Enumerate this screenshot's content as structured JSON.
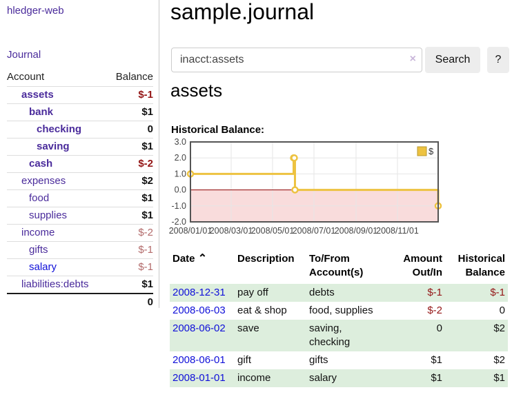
{
  "colors": {
    "purple": "#4a2b9b",
    "blue": "#0f0fd9",
    "darkred": "#941616",
    "rose": "#b36b6b",
    "green_row": "#ddeedd",
    "btn_gray": "#ededed",
    "chart_line": "#edc240",
    "chart_negative_fill": "#f9dcdc",
    "chart_zero_line": "#8b0000",
    "chart_border": "#545454"
  },
  "sidebar": {
    "app_title": "hledger-web",
    "journal_label": "Journal",
    "accounts_table": {
      "headers": {
        "account": "Account",
        "balance": "Balance"
      },
      "rows": [
        {
          "label": "assets",
          "balance": "$-1",
          "indent": 1,
          "bold": true,
          "label_color": "purple",
          "balance_color": "darkred"
        },
        {
          "label": "bank",
          "balance": "$1",
          "indent": 2,
          "bold": true,
          "label_color": "purple",
          "balance_color": "dark"
        },
        {
          "label": "checking",
          "balance": "0",
          "indent": 3,
          "bold": true,
          "label_color": "purple",
          "balance_color": "dark"
        },
        {
          "label": "saving",
          "balance": "$1",
          "indent": 3,
          "bold": true,
          "label_color": "purple",
          "balance_color": "dark"
        },
        {
          "label": "cash",
          "balance": "$-2",
          "indent": 2,
          "bold": true,
          "label_color": "purple",
          "balance_color": "darkred"
        },
        {
          "label": "expenses",
          "balance": "$2",
          "indent": 1,
          "bold": false,
          "label_color": "purple",
          "balance_color": "dark"
        },
        {
          "label": "food",
          "balance": "$1",
          "indent": 2,
          "bold": false,
          "label_color": "purple",
          "balance_color": "dark"
        },
        {
          "label": "supplies",
          "balance": "$1",
          "indent": 2,
          "bold": false,
          "label_color": "purple",
          "balance_color": "dark"
        },
        {
          "label": "income",
          "balance": "$-2",
          "indent": 1,
          "bold": false,
          "label_color": "purple",
          "balance_color": "rose"
        },
        {
          "label": "gifts",
          "balance": "$-1",
          "indent": 2,
          "bold": false,
          "label_color": "purple",
          "balance_color": "rose"
        },
        {
          "label": "salary",
          "balance": "$-1",
          "indent": 2,
          "bold": false,
          "label_color": "blue",
          "balance_color": "rose"
        },
        {
          "label": "liabilities:debts",
          "balance": "$1",
          "indent": 1,
          "bold": false,
          "label_color": "purple",
          "balance_color": "dark"
        }
      ],
      "total": "0"
    }
  },
  "main": {
    "title": "sample.journal",
    "search": {
      "value": "inacct:assets",
      "clear_icon": "×",
      "search_label": "Search",
      "help_label": "?"
    },
    "account_heading": "assets",
    "chart_label": "Historical Balance:"
  },
  "chart_data": {
    "type": "line",
    "title": "Historical Balance:",
    "style": "steps",
    "legend": [
      {
        "label": "$",
        "color": "#edc240"
      }
    ],
    "legend_position": "top-right",
    "grid": true,
    "xlim_days": [
      0,
      365
    ],
    "ylim": [
      -2,
      3
    ],
    "y_ticks": [
      {
        "v": 3,
        "label": "3.0",
        "grid": false
      },
      {
        "v": 2,
        "label": "2.0",
        "grid": true
      },
      {
        "v": 1,
        "label": "1.0",
        "grid": true
      },
      {
        "v": 0,
        "label": "0.0",
        "grid": false
      },
      {
        "v": -1,
        "label": "-1.0",
        "grid": true
      },
      {
        "v": -2,
        "label": "-2.0",
        "grid": false
      }
    ],
    "x_ticks": [
      {
        "day": 0,
        "label": "2008/01/01",
        "grid": false
      },
      {
        "day": 60,
        "label": "2008/03/01",
        "grid": true
      },
      {
        "day": 121,
        "label": "2008/05/01",
        "grid": true
      },
      {
        "day": 182,
        "label": "2008/07/01",
        "grid": true
      },
      {
        "day": 244,
        "label": "2008/09/01",
        "grid": true
      },
      {
        "day": 305,
        "label": "2008/11/01",
        "grid": true
      }
    ],
    "series": [
      {
        "name": "$",
        "points": [
          {
            "date": "2008-01-01",
            "day": 0,
            "value": 1
          },
          {
            "date": "2008-06-01",
            "day": 152,
            "value": 2
          },
          {
            "date": "2008-06-02",
            "day": 153,
            "value": 2
          },
          {
            "date": "2008-06-03",
            "day": 154,
            "value": 0
          },
          {
            "date": "2008-12-31",
            "day": 365,
            "value": -1
          }
        ]
      }
    ]
  },
  "transactions": {
    "headers": {
      "date": "Date",
      "sort_icon": "⌃",
      "description": "Description",
      "accounts": "To/From Account(s)",
      "amount": "Amount Out/In",
      "balance": "Historical Balance"
    },
    "rows": [
      {
        "date": "2008-12-31",
        "description": "pay off",
        "accounts": "debts",
        "amount": "$-1",
        "amount_negative": true,
        "balance": "$-1",
        "balance_negative": true
      },
      {
        "date": "2008-06-03",
        "description": "eat & shop",
        "accounts": "food, supplies",
        "amount": "$-2",
        "amount_negative": true,
        "balance": "0",
        "balance_negative": false
      },
      {
        "date": "2008-06-02",
        "description": "save",
        "accounts": "saving, checking",
        "amount": "0",
        "amount_negative": false,
        "balance": "$2",
        "balance_negative": false
      },
      {
        "date": "2008-06-01",
        "description": "gift",
        "accounts": "gifts",
        "amount": "$1",
        "amount_negative": false,
        "balance": "$2",
        "balance_negative": false
      },
      {
        "date": "2008-01-01",
        "description": "income",
        "accounts": "salary",
        "amount": "$1",
        "amount_negative": false,
        "balance": "$1",
        "balance_negative": false
      }
    ]
  }
}
